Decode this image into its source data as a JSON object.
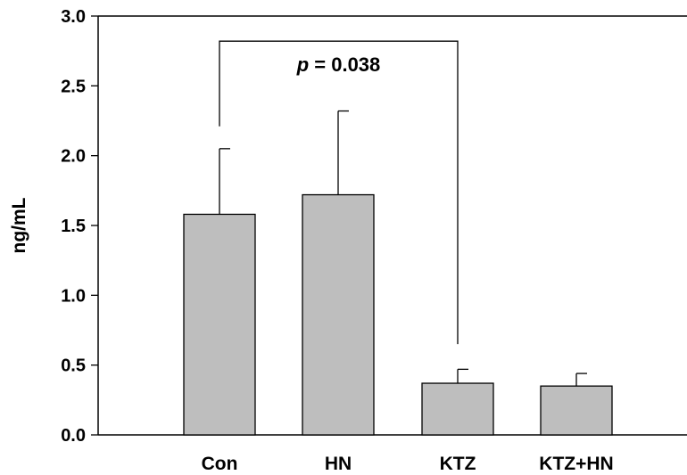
{
  "chart_data": {
    "type": "bar",
    "title": "",
    "xlabel": "",
    "ylabel": "ng/mL",
    "ylim": [
      0,
      3.0
    ],
    "yticks": [
      "0.0",
      "0.5",
      "1.0",
      "1.5",
      "2.0",
      "2.5",
      "3.0"
    ],
    "categories": [
      "Con",
      "HN",
      "KTZ",
      "KTZ+HN"
    ],
    "values": [
      1.58,
      1.72,
      0.37,
      0.35
    ],
    "errors": [
      0.47,
      0.6,
      0.1,
      0.09
    ],
    "bar_color": "#bebebe",
    "grid": false,
    "legend": "none",
    "annotation": {
      "p_symbol": "p",
      "text": " = 0.038",
      "compares": [
        "Con",
        "KTZ"
      ],
      "bracket_top": 2.82,
      "left_end": 2.21,
      "right_end": 0.65
    }
  }
}
